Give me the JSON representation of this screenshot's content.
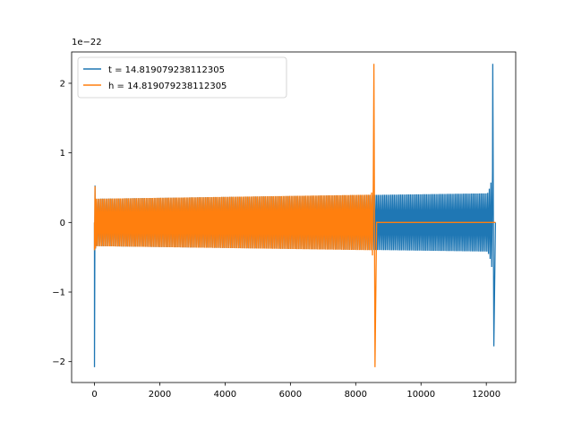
{
  "chart_data": {
    "type": "line",
    "title": "",
    "xlabel": "",
    "ylabel": "",
    "y_offset_label": "1e−22",
    "xlim": [
      -700,
      12900
    ],
    "ylim": [
      -2.3,
      2.45
    ],
    "xticks": [
      0,
      2000,
      4000,
      6000,
      8000,
      10000,
      12000
    ],
    "yticks": [
      -2,
      -1,
      0,
      1,
      2
    ],
    "ytick_labels": [
      "−2",
      "−1",
      "0",
      "1",
      "2"
    ],
    "grid": false,
    "legend_placement": "top-left",
    "series": [
      {
        "name": "t = 14.819079238112305",
        "color": "#1f77b4",
        "x_start": 0,
        "x_end": 12280,
        "start_spike_min": -2.08,
        "start_spike_max": 0.53,
        "amplitude_start": 0.34,
        "amplitude_before_merger": 0.42,
        "merger_x": 12280,
        "peak_max": 2.28,
        "peak_min": -1.78
      },
      {
        "name": "h = 14.819079238112305",
        "color": "#ff7f0e",
        "x_start": 0,
        "x_end": 12280,
        "start_spike_min": -0.4,
        "start_spike_max": 0.52,
        "amplitude_start": 0.34,
        "amplitude_before_merger": 0.4,
        "merger_x": 8640,
        "peak_max": 2.28,
        "peak_min": -2.08,
        "after_merger_value": 0
      }
    ]
  }
}
